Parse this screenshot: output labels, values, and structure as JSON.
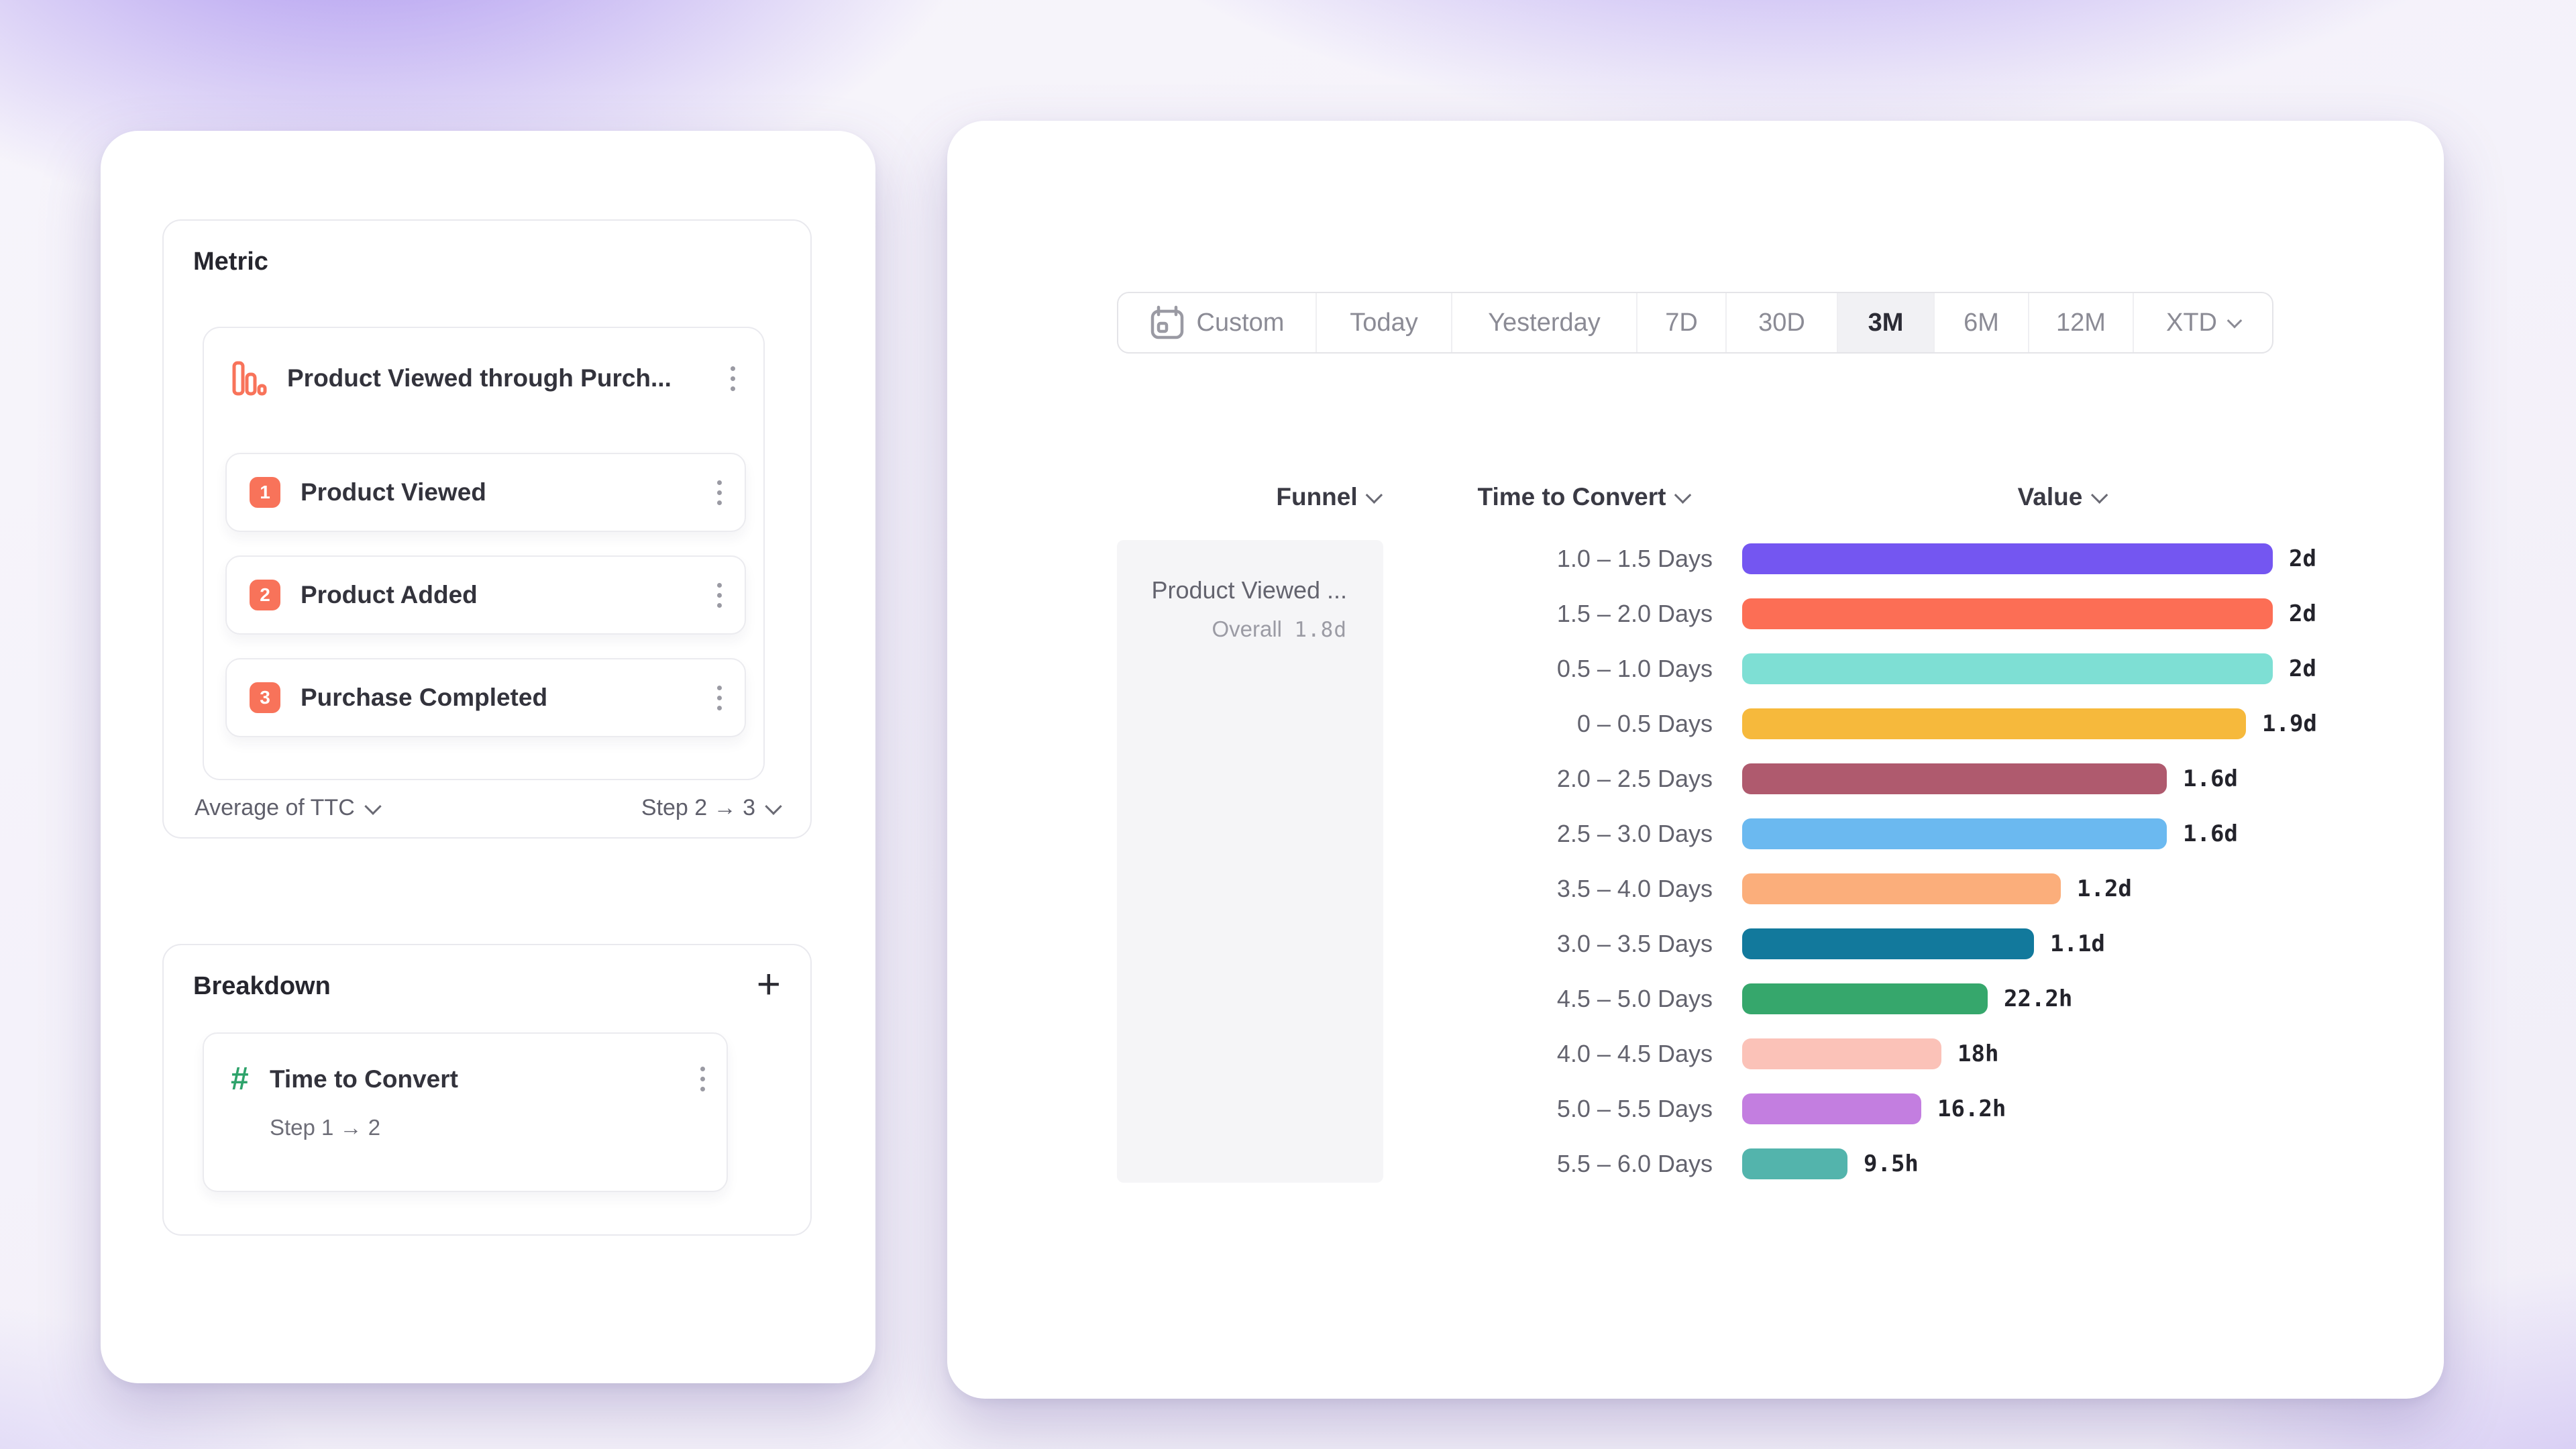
{
  "colors": {
    "accent_orange": "#F8735A",
    "accent_green": "#2EA36B",
    "value_text": "#23232B",
    "selected_pill_bg": "#F1F1F4"
  },
  "left_panel": {
    "metric_section": {
      "title": "Metric",
      "funnel_title": "Product Viewed through Purch...",
      "steps": [
        {
          "number": "1",
          "label": "Product Viewed"
        },
        {
          "number": "2",
          "label": "Product Added"
        },
        {
          "number": "3",
          "label": "Purchase Completed"
        }
      ],
      "aggregation_label": "Average of TTC",
      "step_selector_label": "Step 2 → 3"
    },
    "breakdown_section": {
      "title": "Breakdown",
      "add_button": "+",
      "item": {
        "label": "Time to Convert",
        "sublabel": "Step 1 → 2"
      }
    }
  },
  "right_panel": {
    "date_range": {
      "selected": "3M",
      "options": [
        {
          "label": "Custom",
          "icon": "calendar-icon"
        },
        {
          "label": "Today"
        },
        {
          "label": "Yesterday"
        },
        {
          "label": "7D"
        },
        {
          "label": "30D"
        },
        {
          "label": "3M"
        },
        {
          "label": "6M"
        },
        {
          "label": "12M"
        },
        {
          "label": "XTD",
          "chevron": true
        }
      ]
    },
    "columns": [
      {
        "label": "Funnel"
      },
      {
        "label": "Time to Convert"
      },
      {
        "label": "Value"
      }
    ],
    "funnel_cell": {
      "name": "Product Viewed ...",
      "overall_label": "Overall",
      "overall_value": "1.8d"
    }
  },
  "chart_data": {
    "type": "bar",
    "orientation": "horizontal",
    "categories": [
      "1.0 – 1.5 Days",
      "1.5 – 2.0 Days",
      "0.5 – 1.0 Days",
      "0 – 0.5 Days",
      "2.0 – 2.5 Days",
      "2.5 – 3.0 Days",
      "3.5 – 4.0 Days",
      "3.0 – 3.5 Days",
      "4.5 – 5.0 Days",
      "4.0 – 4.5 Days",
      "5.0 – 5.5 Days",
      "5.5 – 6.0 Days"
    ],
    "values_display": [
      "2d",
      "2d",
      "2d",
      "1.9d",
      "1.6d",
      "1.6d",
      "1.2d",
      "1.1d",
      "22.2h",
      "18h",
      "16.2h",
      "9.5h"
    ],
    "values_days": [
      2,
      2,
      2,
      1.9,
      1.6,
      1.6,
      1.2,
      1.1,
      0.925,
      0.75,
      0.675,
      0.396
    ],
    "bar_colors": [
      "#7456F1",
      "#FC6E55",
      "#7EDFD4",
      "#F6B93C",
      "#AF5A6E",
      "#6BB9F0",
      "#FBAE7B",
      "#12799C",
      "#36A76C",
      "#FBC2B8",
      "#C37EE0",
      "#53B4AC"
    ],
    "x_max_days": 2,
    "grid": false,
    "legend": false
  }
}
